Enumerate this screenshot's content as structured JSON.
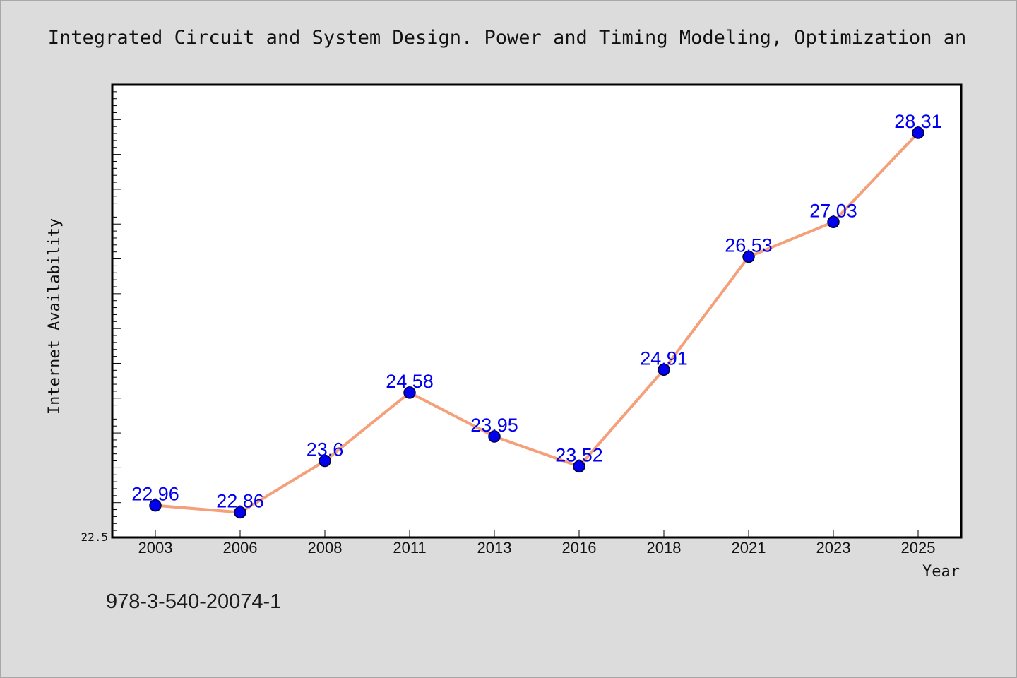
{
  "chart_data": {
    "type": "line",
    "title": "Integrated Circuit and System Design. Power and Timing Modeling, Optimization an",
    "xlabel": "Year",
    "ylabel": "Internet Availability",
    "categories": [
      "2003",
      "2006",
      "2008",
      "2011",
      "2013",
      "2016",
      "2018",
      "2021",
      "2023",
      "2025"
    ],
    "series": [
      {
        "values": [
          22.96,
          22.86,
          23.6,
          24.58,
          23.95,
          23.52,
          24.91,
          26.53,
          27.03,
          28.31
        ],
        "labels": [
          "22.96",
          "22.86",
          "23.6",
          "24.58",
          "23.95",
          "23.52",
          "24.91",
          "26.53",
          "27.03",
          "28.31"
        ]
      }
    ],
    "ylim": [
      22.5,
      29.0
    ],
    "y_tick_labels": [
      "22.5"
    ],
    "grid": false,
    "legend": "none",
    "colors": {
      "line": "#f4a07a",
      "marker": "#0000ee",
      "marker_edge": "#000033",
      "data_label": "#0000ee",
      "plot_bg": "#ffffff",
      "page_bg": "#dcdcdc"
    }
  },
  "footer": {
    "isbn": "978-3-540-20074-1"
  }
}
